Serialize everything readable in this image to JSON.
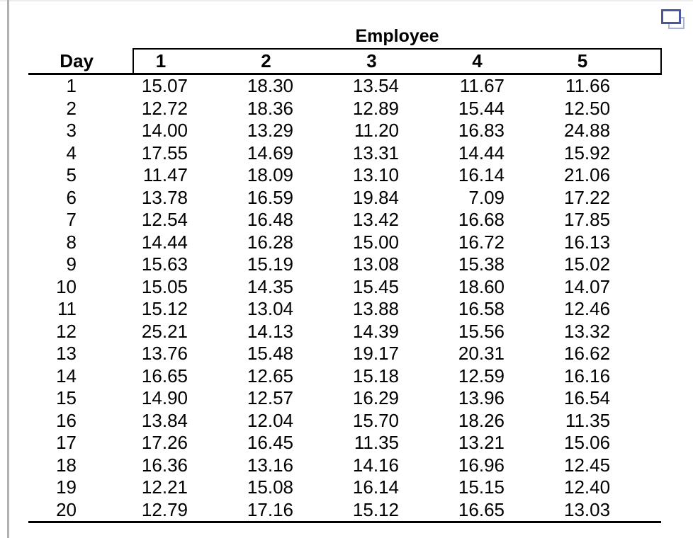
{
  "colors": {
    "table_text": "#000000",
    "copy_icon_front_border": "#4b579b",
    "copy_icon_back_border": "#a9b2d6",
    "left_edge_bar": "#b2b2b2",
    "rule_lines": "#000000"
  },
  "icons": {
    "copy": "copy-duplicate-icon"
  },
  "table": {
    "group_header": "Employee",
    "day_header": "Day",
    "employee_columns": [
      "1",
      "2",
      "3",
      "4",
      "5"
    ],
    "rows": [
      {
        "day": "1",
        "values": [
          "15.07",
          "18.30",
          "13.54",
          "11.67",
          "11.66"
        ]
      },
      {
        "day": "2",
        "values": [
          "12.72",
          "18.36",
          "12.89",
          "15.44",
          "12.50"
        ]
      },
      {
        "day": "3",
        "values": [
          "14.00",
          "13.29",
          "11.20",
          "16.83",
          "24.88"
        ]
      },
      {
        "day": "4",
        "values": [
          "17.55",
          "14.69",
          "13.31",
          "14.44",
          "15.92"
        ]
      },
      {
        "day": "5",
        "values": [
          "11.47",
          "18.09",
          "13.10",
          "16.14",
          "21.06"
        ]
      },
      {
        "day": "6",
        "values": [
          "13.78",
          "16.59",
          "19.84",
          "7.09",
          "17.22"
        ]
      },
      {
        "day": "7",
        "values": [
          "12.54",
          "16.48",
          "13.42",
          "16.68",
          "17.85"
        ]
      },
      {
        "day": "8",
        "values": [
          "14.44",
          "16.28",
          "15.00",
          "16.72",
          "16.13"
        ]
      },
      {
        "day": "9",
        "values": [
          "15.63",
          "15.19",
          "13.08",
          "15.38",
          "15.02"
        ]
      },
      {
        "day": "10",
        "values": [
          "15.05",
          "14.35",
          "15.45",
          "18.60",
          "14.07"
        ]
      },
      {
        "day": "11",
        "values": [
          "15.12",
          "13.04",
          "13.88",
          "16.58",
          "12.46"
        ]
      },
      {
        "day": "12",
        "values": [
          "25.21",
          "14.13",
          "14.39",
          "15.56",
          "13.32"
        ]
      },
      {
        "day": "13",
        "values": [
          "13.76",
          "15.48",
          "19.17",
          "20.31",
          "16.62"
        ]
      },
      {
        "day": "14",
        "values": [
          "16.65",
          "12.65",
          "15.18",
          "12.59",
          "16.16"
        ]
      },
      {
        "day": "15",
        "values": [
          "14.90",
          "12.57",
          "16.29",
          "13.96",
          "16.54"
        ]
      },
      {
        "day": "16",
        "values": [
          "13.84",
          "12.04",
          "15.70",
          "18.26",
          "11.35"
        ]
      },
      {
        "day": "17",
        "values": [
          "17.26",
          "16.45",
          "11.35",
          "13.21",
          "15.06"
        ]
      },
      {
        "day": "18",
        "values": [
          "16.36",
          "13.16",
          "14.16",
          "16.96",
          "12.45"
        ]
      },
      {
        "day": "19",
        "values": [
          "12.21",
          "15.08",
          "16.14",
          "15.15",
          "12.40"
        ]
      },
      {
        "day": "20",
        "values": [
          "12.79",
          "17.16",
          "15.12",
          "16.65",
          "13.03"
        ]
      }
    ]
  },
  "chart_data": {
    "type": "table",
    "title": "Employee",
    "row_label": "Day",
    "columns": [
      "1",
      "2",
      "3",
      "4",
      "5"
    ],
    "days": [
      1,
      2,
      3,
      4,
      5,
      6,
      7,
      8,
      9,
      10,
      11,
      12,
      13,
      14,
      15,
      16,
      17,
      18,
      19,
      20
    ],
    "values": [
      [
        15.07,
        18.3,
        13.54,
        11.67,
        11.66
      ],
      [
        12.72,
        18.36,
        12.89,
        15.44,
        12.5
      ],
      [
        14.0,
        13.29,
        11.2,
        16.83,
        24.88
      ],
      [
        17.55,
        14.69,
        13.31,
        14.44,
        15.92
      ],
      [
        11.47,
        18.09,
        13.1,
        16.14,
        21.06
      ],
      [
        13.78,
        16.59,
        19.84,
        7.09,
        17.22
      ],
      [
        12.54,
        16.48,
        13.42,
        16.68,
        17.85
      ],
      [
        14.44,
        16.28,
        15.0,
        16.72,
        16.13
      ],
      [
        15.63,
        15.19,
        13.08,
        15.38,
        15.02
      ],
      [
        15.05,
        14.35,
        15.45,
        18.6,
        14.07
      ],
      [
        15.12,
        13.04,
        13.88,
        16.58,
        12.46
      ],
      [
        25.21,
        14.13,
        14.39,
        15.56,
        13.32
      ],
      [
        13.76,
        15.48,
        19.17,
        20.31,
        16.62
      ],
      [
        16.65,
        12.65,
        15.18,
        12.59,
        16.16
      ],
      [
        14.9,
        12.57,
        16.29,
        13.96,
        16.54
      ],
      [
        13.84,
        12.04,
        15.7,
        18.26,
        11.35
      ],
      [
        17.26,
        16.45,
        11.35,
        13.21,
        15.06
      ],
      [
        16.36,
        13.16,
        14.16,
        16.96,
        12.45
      ],
      [
        12.21,
        15.08,
        16.14,
        15.15,
        12.4
      ],
      [
        12.79,
        17.16,
        15.12,
        16.65,
        13.03
      ]
    ]
  }
}
